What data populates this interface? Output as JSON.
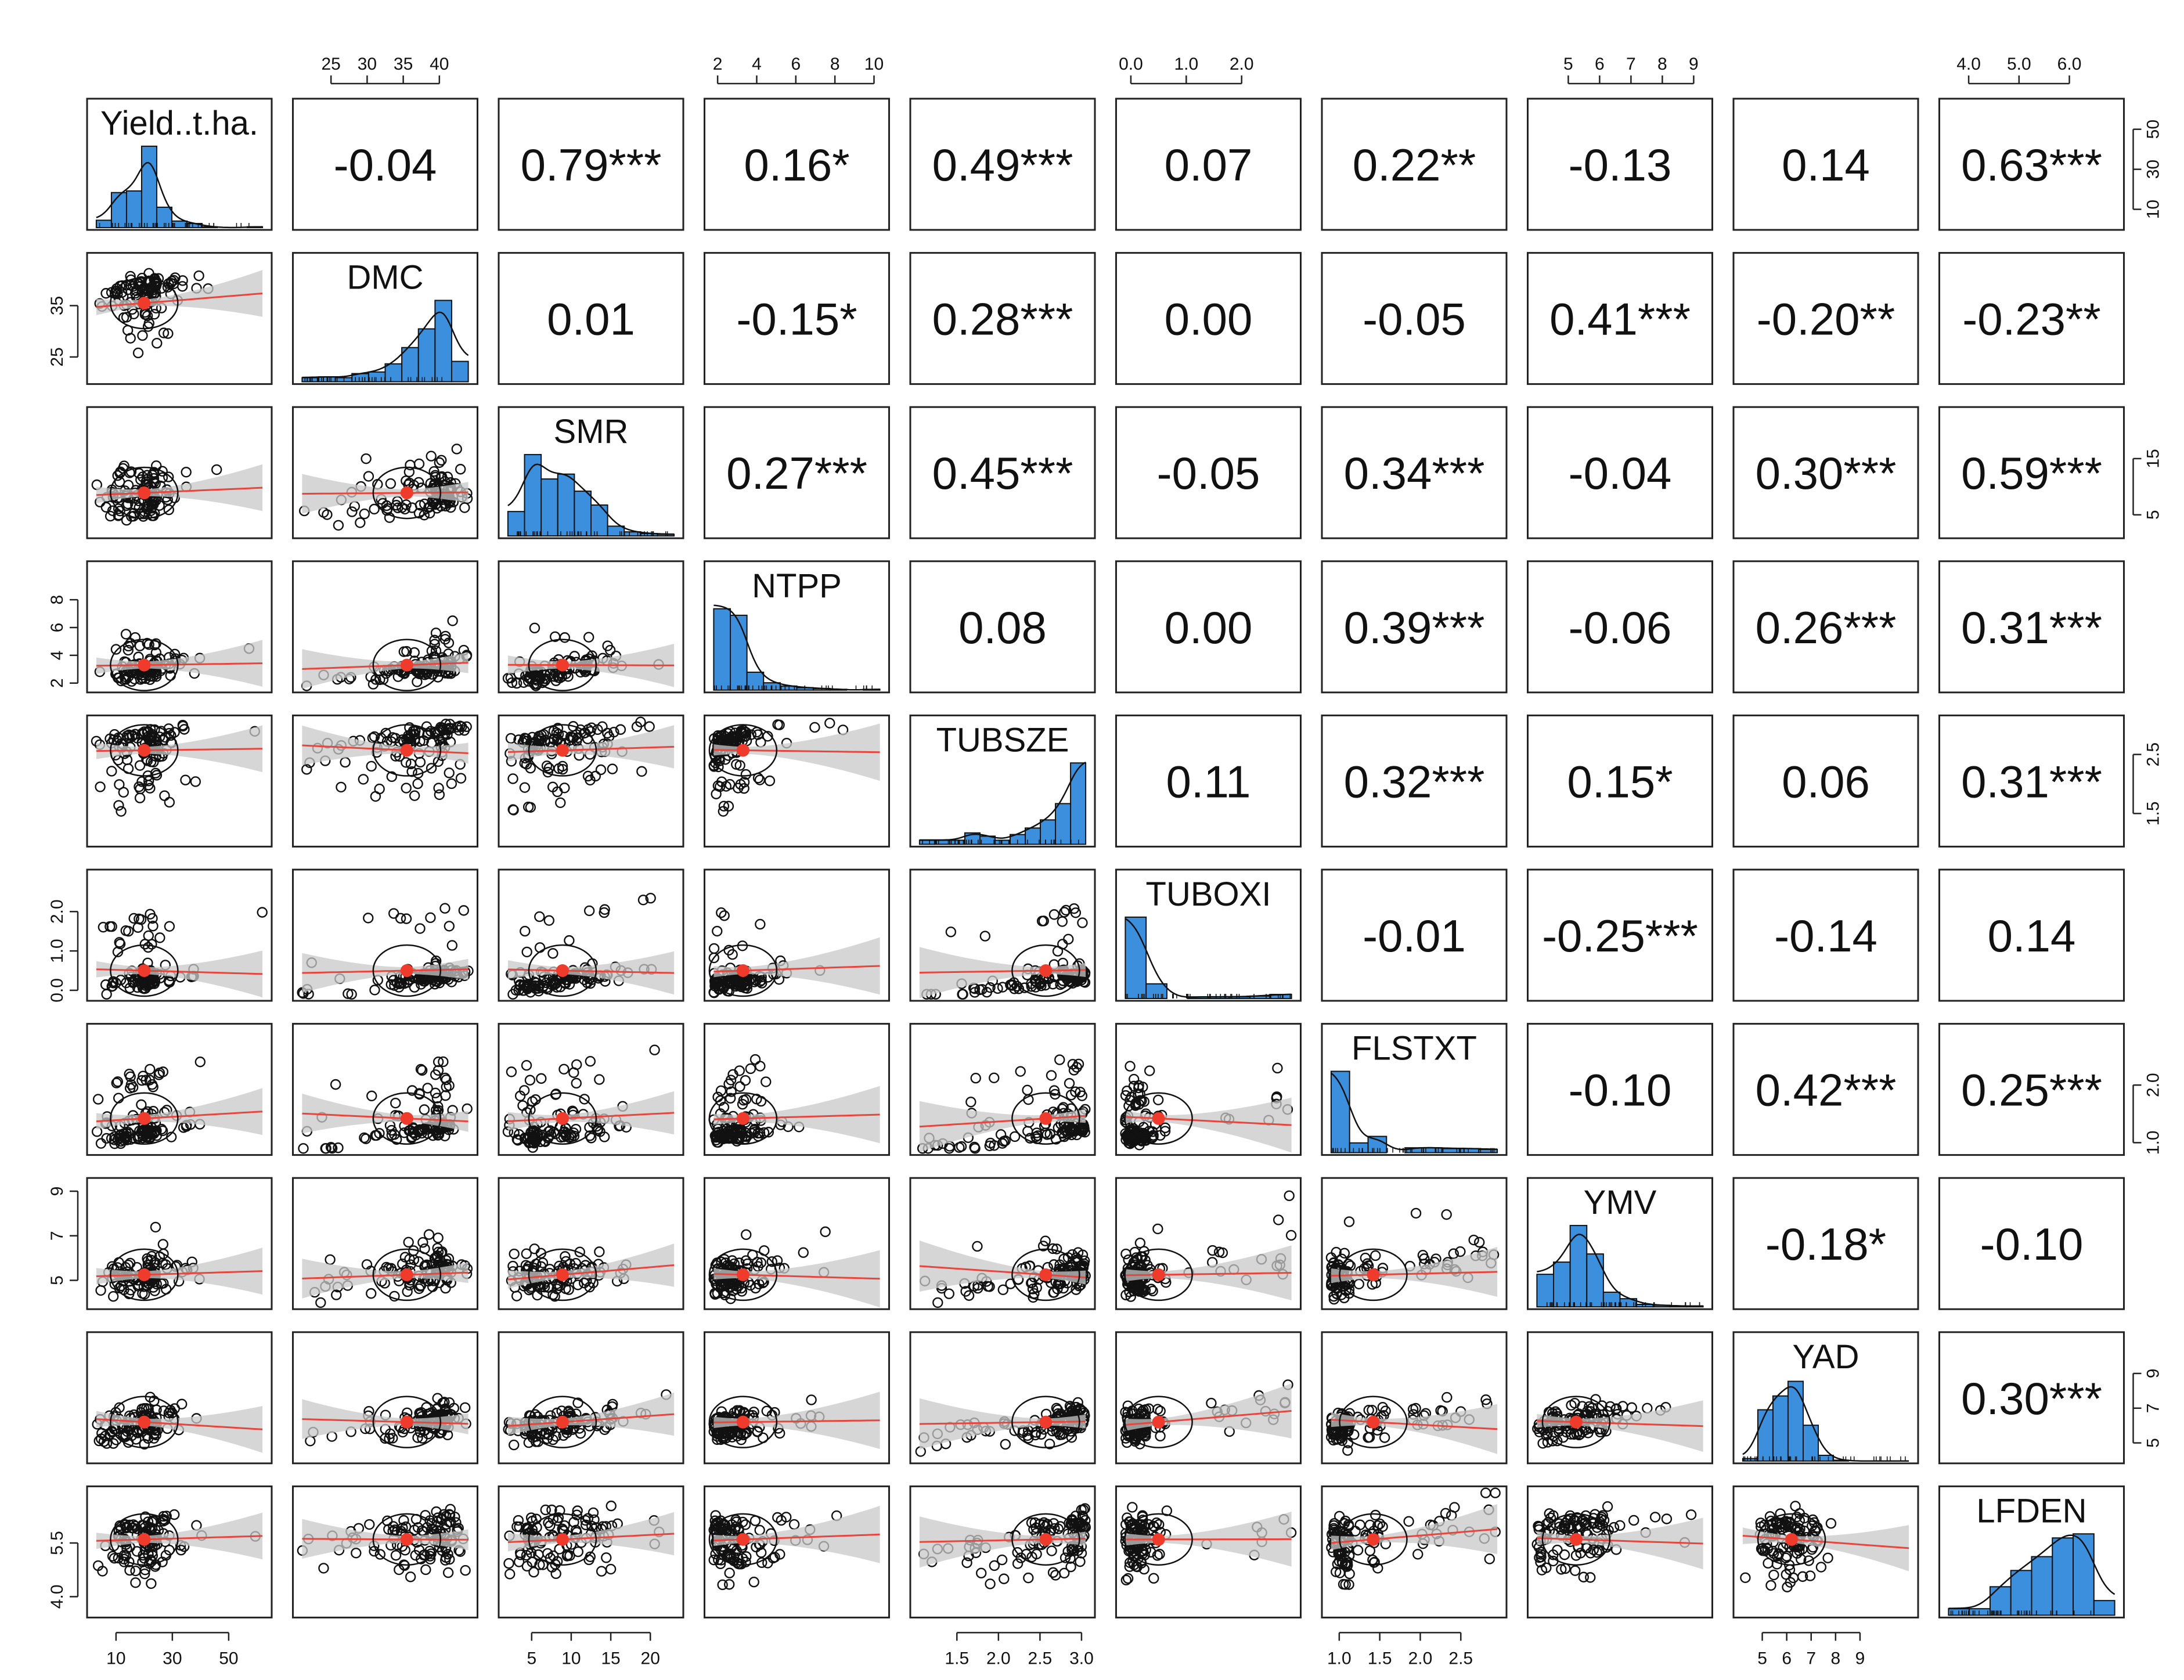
{
  "chart_data": {
    "type": "pairs",
    "colors": {
      "histogram": "#3b8fdc",
      "fit_line": "#e8453c",
      "confidence_band": "#c8c8c8",
      "center_point": "#ef3b2c",
      "points": "#111111"
    },
    "variables": [
      {
        "name": "Yield..t.ha.",
        "range": [
          3,
          62
        ],
        "center": 20,
        "hist": [
          0.09,
          0.43,
          0.45,
          1.0,
          0.25,
          0.08,
          0.05,
          0.01,
          0.0,
          0.0,
          0.01
        ],
        "ticks": [
          "10",
          "30",
          "50"
        ],
        "tick_values": [
          10,
          30,
          50
        ],
        "tick_side": "bottom"
      },
      {
        "name": "DMC",
        "range": [
          21,
          44
        ],
        "center": 35.5,
        "hist": [
          0.05,
          0.06,
          0.05,
          0.1,
          0.12,
          0.22,
          0.42,
          0.65,
          1.0,
          0.25
        ],
        "ticks": [
          "25",
          "30",
          "35",
          "40"
        ],
        "tick_values": [
          25,
          30,
          35,
          40
        ],
        "tick_side": "top"
      },
      {
        "name": "SMR",
        "range": [
          2,
          23
        ],
        "center": 8.9,
        "hist": [
          0.3,
          1.0,
          0.7,
          0.76,
          0.55,
          0.38,
          0.12,
          0.05,
          0.03,
          0.02
        ],
        "ticks": [
          "5",
          "10",
          "15",
          "20"
        ],
        "tick_values": [
          5,
          10,
          15,
          20
        ],
        "tick_side": "bottom"
      },
      {
        "name": "NTPP",
        "range": [
          1.8,
          10.3
        ],
        "center": 3.3,
        "hist": [
          1.0,
          0.92,
          0.22,
          0.09,
          0.05,
          0.03,
          0.02,
          0.01,
          0.0,
          0.01
        ],
        "ticks": [
          "2",
          "4",
          "6",
          "8",
          "10"
        ],
        "tick_values": [
          2,
          4,
          6,
          8,
          10
        ],
        "tick_side": "top"
      },
      {
        "name": "TUBSZE",
        "range": [
          1.05,
          3.05
        ],
        "center": 2.57,
        "hist": [
          0.05,
          0.05,
          0.05,
          0.14,
          0.1,
          0.05,
          0.12,
          0.2,
          0.3,
          0.5,
          1.0
        ],
        "ticks": [
          "1.5",
          "2.0",
          "2.5",
          "3.0"
        ],
        "tick_values": [
          1.5,
          2.0,
          2.5,
          3.0
        ],
        "tick_side": "bottom"
      },
      {
        "name": "TUBOXI",
        "range": [
          -0.1,
          2.9
        ],
        "center": 0.5,
        "hist": [
          1.0,
          0.18,
          0.0,
          0.02,
          0.02,
          0.02,
          0.03,
          0.05
        ],
        "ticks": [
          "0.0",
          "1.0",
          "2.0"
        ],
        "tick_values": [
          0.0,
          1.0,
          2.0
        ],
        "tick_side": "top"
      },
      {
        "name": "FLSTXT",
        "range": [
          0.9,
          2.95
        ],
        "center": 1.42,
        "hist": [
          1.0,
          0.12,
          0.2,
          0.0,
          0.06,
          0.06,
          0.05,
          0.05,
          0.04
        ],
        "ticks": [
          "1.0",
          "1.5",
          "2.0",
          "2.5"
        ],
        "tick_values": [
          1.0,
          1.5,
          2.0,
          2.5
        ],
        "tick_side": "bottom"
      },
      {
        "name": "YMV",
        "range": [
          4.0,
          9.3
        ],
        "center": 5.25,
        "hist": [
          0.4,
          0.55,
          1.0,
          0.65,
          0.18,
          0.1,
          0.03,
          0.02,
          0.01,
          0.01
        ],
        "ticks": [
          "5",
          "6",
          "7",
          "8",
          "9"
        ],
        "tick_values": [
          5,
          6,
          7,
          8,
          9
        ],
        "tick_side": "top"
      },
      {
        "name": "YAD",
        "range": [
          4.2,
          11.0
        ],
        "center": 6.2,
        "hist": [
          0.03,
          0.63,
          0.8,
          0.98,
          0.44,
          0.07,
          0.01,
          0.0,
          0.0,
          0.0,
          0.0
        ],
        "ticks": [
          "5",
          "6",
          "7",
          "8",
          "9"
        ],
        "tick_values": [
          5,
          6,
          7,
          8,
          9
        ],
        "tick_side": "bottom"
      },
      {
        "name": "LFDEN",
        "range": [
          3.6,
          6.9
        ],
        "center": 5.6,
        "hist": [
          0.08,
          0.08,
          0.35,
          0.55,
          0.72,
          0.95,
          1.0,
          0.18
        ],
        "ticks": [
          "4.0",
          "5.0",
          "6.0"
        ],
        "tick_values": [
          4.0,
          5.0,
          6.0
        ],
        "tick_side": "top"
      }
    ],
    "right_axis": [
      {
        "row": 0,
        "ticks": [
          "10",
          "30",
          "50"
        ],
        "tick_values": [
          10,
          30,
          50
        ]
      },
      {
        "row": 2,
        "ticks": [
          "5",
          "15"
        ],
        "tick_values": [
          5,
          15
        ]
      },
      {
        "row": 4,
        "ticks": [
          "1.5",
          "2.5"
        ],
        "tick_values": [
          1.5,
          2.5
        ]
      },
      {
        "row": 6,
        "ticks": [
          "1.0",
          "2.0"
        ],
        "tick_values": [
          1.0,
          2.0
        ]
      },
      {
        "row": 8,
        "ticks": [
          "5",
          "7",
          "9"
        ],
        "tick_values": [
          5,
          7,
          9
        ]
      }
    ],
    "left_axis": [
      {
        "row": 1,
        "ticks": [
          "25",
          "35"
        ],
        "tick_values": [
          25,
          35
        ]
      },
      {
        "row": 3,
        "ticks": [
          "2",
          "4",
          "6",
          "8"
        ],
        "tick_values": [
          2,
          4,
          6,
          8
        ]
      },
      {
        "row": 5,
        "ticks": [
          "0.0",
          "1.0",
          "2.0"
        ],
        "tick_values": [
          0.0,
          1.0,
          2.0
        ]
      },
      {
        "row": 7,
        "ticks": [
          "5",
          "7",
          "9"
        ],
        "tick_values": [
          5,
          7,
          9
        ]
      },
      {
        "row": 9,
        "ticks": [
          "4.0",
          "5.5"
        ],
        "tick_values": [
          4.0,
          5.5
        ]
      }
    ],
    "correlations": [
      {
        "row": 0,
        "col": 1,
        "text": "-0.04"
      },
      {
        "row": 0,
        "col": 2,
        "text": "0.79***"
      },
      {
        "row": 0,
        "col": 3,
        "text": "0.16*"
      },
      {
        "row": 0,
        "col": 4,
        "text": "0.49***"
      },
      {
        "row": 0,
        "col": 5,
        "text": "0.07"
      },
      {
        "row": 0,
        "col": 6,
        "text": "0.22**"
      },
      {
        "row": 0,
        "col": 7,
        "text": "-0.13"
      },
      {
        "row": 0,
        "col": 8,
        "text": "0.14"
      },
      {
        "row": 0,
        "col": 9,
        "text": "0.63***"
      },
      {
        "row": 1,
        "col": 2,
        "text": "0.01"
      },
      {
        "row": 1,
        "col": 3,
        "text": "-0.15*"
      },
      {
        "row": 1,
        "col": 4,
        "text": "0.28***"
      },
      {
        "row": 1,
        "col": 5,
        "text": "0.00"
      },
      {
        "row": 1,
        "col": 6,
        "text": "-0.05"
      },
      {
        "row": 1,
        "col": 7,
        "text": "0.41***"
      },
      {
        "row": 1,
        "col": 8,
        "text": "-0.20**"
      },
      {
        "row": 1,
        "col": 9,
        "text": "-0.23**"
      },
      {
        "row": 2,
        "col": 3,
        "text": "0.27***"
      },
      {
        "row": 2,
        "col": 4,
        "text": "0.45***"
      },
      {
        "row": 2,
        "col": 5,
        "text": "-0.05"
      },
      {
        "row": 2,
        "col": 6,
        "text": "0.34***"
      },
      {
        "row": 2,
        "col": 7,
        "text": "-0.04"
      },
      {
        "row": 2,
        "col": 8,
        "text": "0.30***"
      },
      {
        "row": 2,
        "col": 9,
        "text": "0.59***"
      },
      {
        "row": 3,
        "col": 4,
        "text": "0.08"
      },
      {
        "row": 3,
        "col": 5,
        "text": "0.00"
      },
      {
        "row": 3,
        "col": 6,
        "text": "0.39***"
      },
      {
        "row": 3,
        "col": 7,
        "text": "-0.06"
      },
      {
        "row": 3,
        "col": 8,
        "text": "0.26***"
      },
      {
        "row": 3,
        "col": 9,
        "text": "0.31***"
      },
      {
        "row": 4,
        "col": 5,
        "text": "0.11"
      },
      {
        "row": 4,
        "col": 6,
        "text": "0.32***"
      },
      {
        "row": 4,
        "col": 7,
        "text": "0.15*"
      },
      {
        "row": 4,
        "col": 8,
        "text": "0.06"
      },
      {
        "row": 4,
        "col": 9,
        "text": "0.31***"
      },
      {
        "row": 5,
        "col": 6,
        "text": "-0.01"
      },
      {
        "row": 5,
        "col": 7,
        "text": "-0.25***"
      },
      {
        "row": 5,
        "col": 8,
        "text": "-0.14"
      },
      {
        "row": 5,
        "col": 9,
        "text": "0.14"
      },
      {
        "row": 6,
        "col": 7,
        "text": "-0.10"
      },
      {
        "row": 6,
        "col": 8,
        "text": "0.42***"
      },
      {
        "row": 6,
        "col": 9,
        "text": "0.25***"
      },
      {
        "row": 7,
        "col": 8,
        "text": "-0.18*"
      },
      {
        "row": 7,
        "col": 9,
        "text": "-0.10"
      },
      {
        "row": 8,
        "col": 9,
        "text": "0.30***"
      }
    ]
  }
}
